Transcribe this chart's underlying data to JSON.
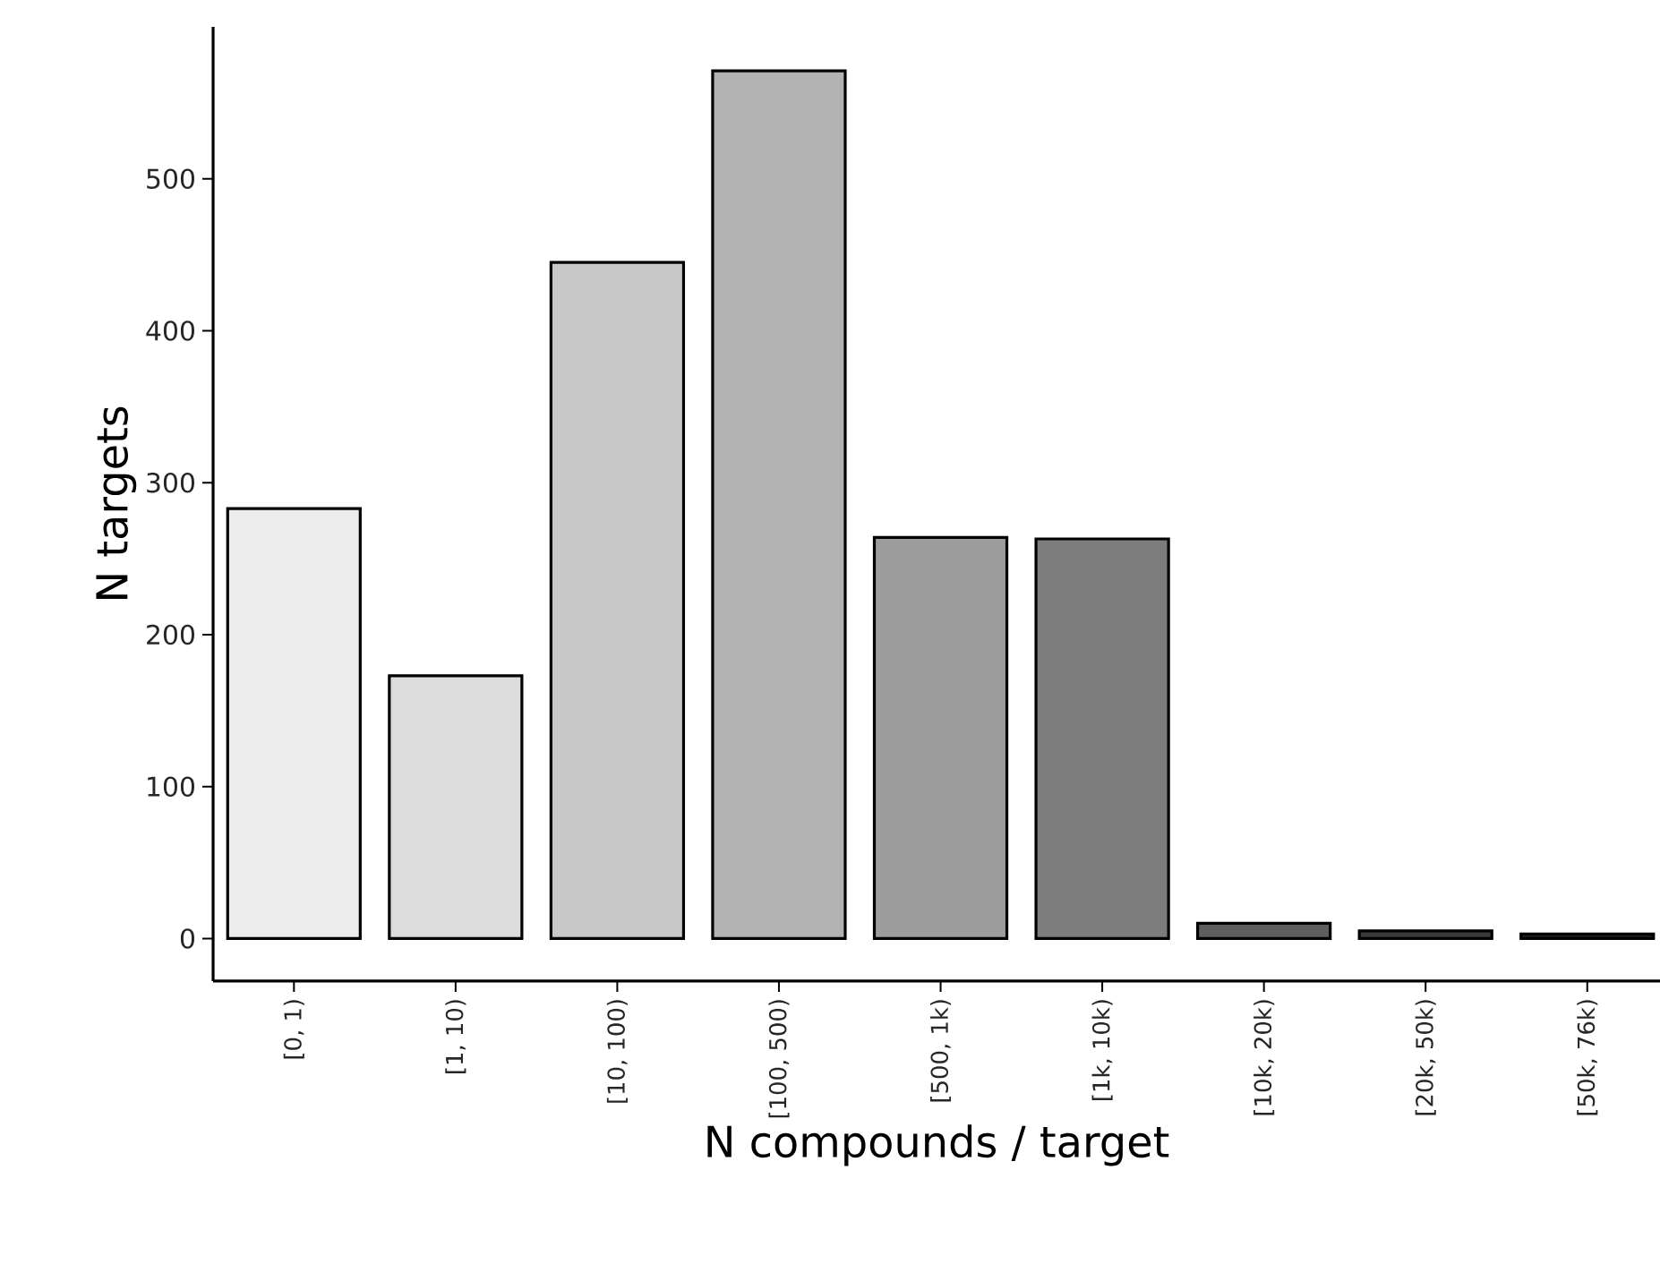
{
  "chart_data": {
    "type": "bar",
    "xlabel": "N compounds / target",
    "ylabel": "N targets",
    "categories": [
      "[0, 1)",
      "[1, 10)",
      "[10, 100)",
      "[100, 500)",
      "[500, 1k)",
      "[1k, 10k)",
      "[10k, 20k)",
      "[20k, 50k)",
      "[50k, 76k)"
    ],
    "values": [
      283,
      173,
      445,
      571,
      264,
      263,
      10,
      5,
      3
    ],
    "colors": [
      "#ececec",
      "#dcdcdc",
      "#c8c8c8",
      "#b2b2b2",
      "#9c9c9c",
      "#7c7c7c",
      "#5e5e5e",
      "#3a3a3a",
      "#1e1e1e"
    ],
    "ylim": [
      -28,
      600
    ],
    "yticks": [
      0,
      100,
      200,
      300,
      400,
      500
    ],
    "grid": false
  }
}
